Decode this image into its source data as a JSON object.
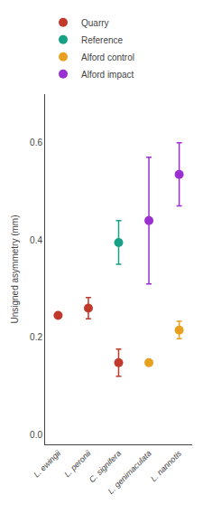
{
  "chart_data": {
    "type": "scatter",
    "categories": [
      "L. ewingii",
      "L. peronii",
      "C. signifera",
      "L. genimaculata",
      "L. nannotis"
    ],
    "series": [
      {
        "name": "Quarry",
        "color": "#c0392b",
        "values": [
          0.245,
          0.26,
          0.148,
          null,
          null
        ],
        "errors": [
          null,
          0.022,
          0.028,
          null,
          null
        ]
      },
      {
        "name": "Reference",
        "color": "#16a085",
        "values": [
          null,
          null,
          0.395,
          null,
          null
        ],
        "errors": [
          null,
          null,
          0.045,
          null,
          null
        ]
      },
      {
        "name": "Alford control",
        "color": "#e8a020",
        "values": [
          null,
          null,
          null,
          0.148,
          0.215
        ],
        "errors": [
          null,
          null,
          null,
          null,
          0.018
        ]
      },
      {
        "name": "Alford impact",
        "color": "#9b30d0",
        "values": [
          null,
          null,
          null,
          0.44,
          0.535
        ],
        "errors": [
          null,
          null,
          null,
          0.13,
          0.065
        ]
      }
    ],
    "y_label": "Unsigned asymmetry (mm)",
    "ylim": [
      -0.02,
      0.7
    ],
    "yticks": [
      {
        "value": 0.0,
        "label": "0.0"
      },
      0.2,
      0.4,
      0.6
    ],
    "grid": false,
    "legend": "upper left",
    "marker": "circle"
  }
}
